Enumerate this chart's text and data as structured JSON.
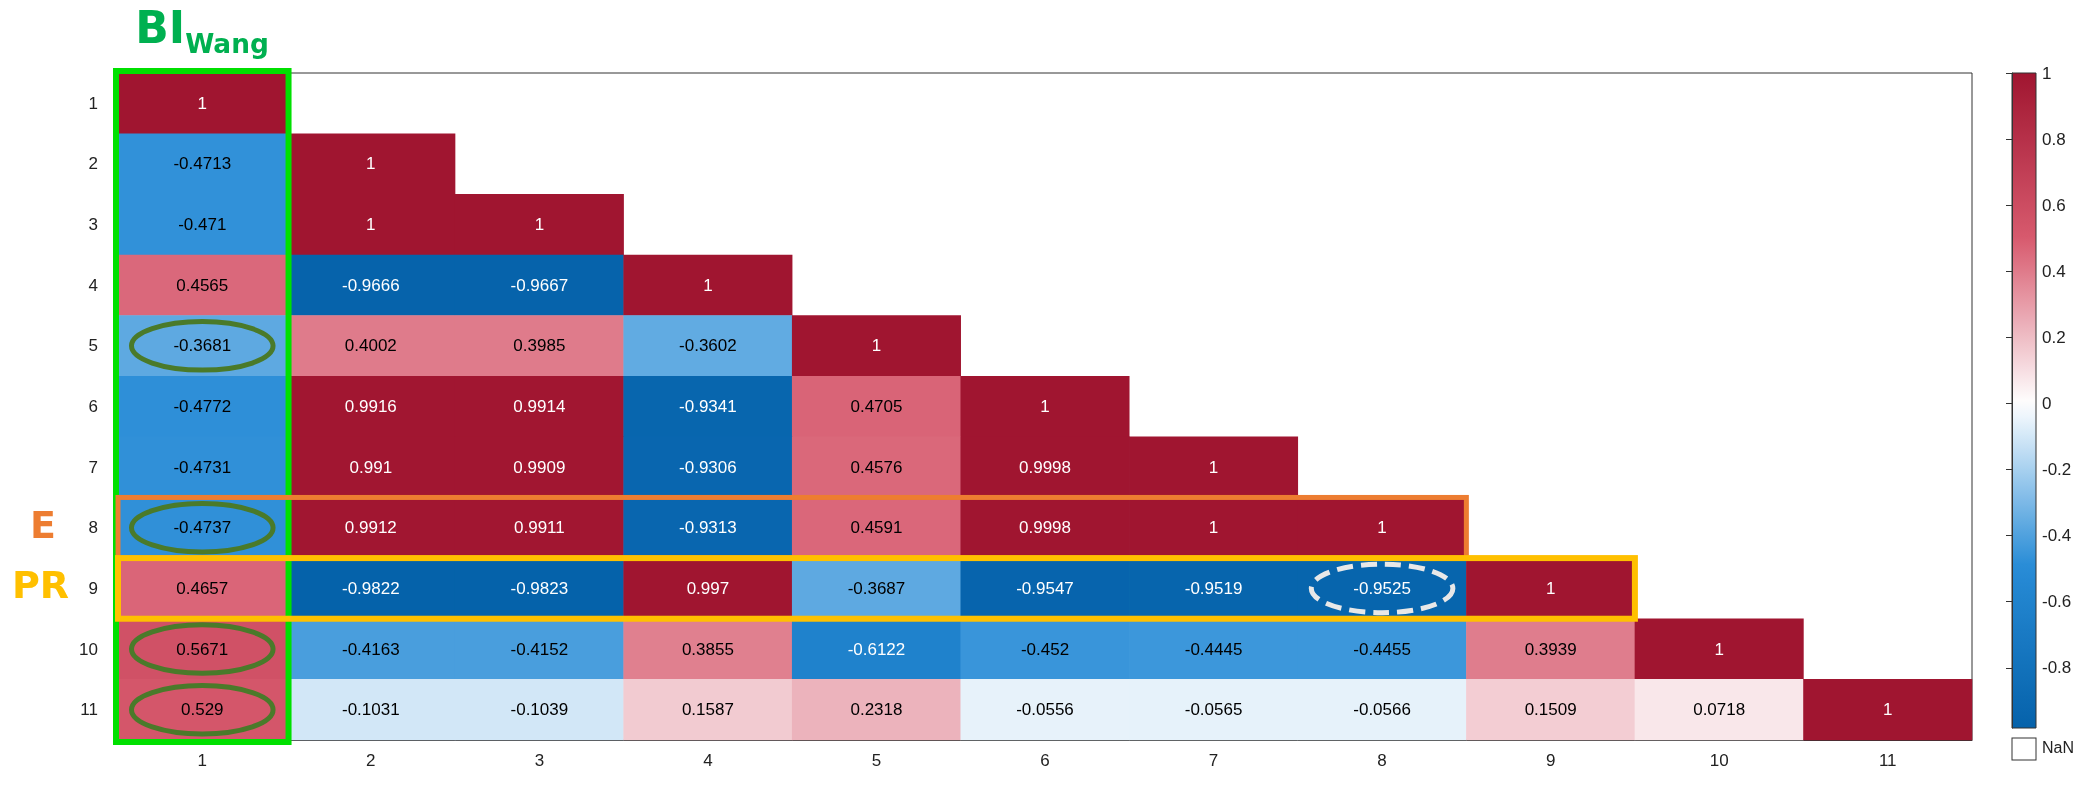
{
  "chart_data": {
    "type": "heatmap",
    "categories": [
      "1",
      "2",
      "3",
      "4",
      "5",
      "6",
      "7",
      "8",
      "9",
      "10",
      "11"
    ],
    "y_categories": [
      "1",
      "2",
      "3",
      "4",
      "5",
      "6",
      "7",
      "8",
      "9",
      "10",
      "11"
    ],
    "cells": [
      [
        1,
        null,
        null,
        null,
        null,
        null,
        null,
        null,
        null,
        null,
        null
      ],
      [
        -0.4713,
        1,
        null,
        null,
        null,
        null,
        null,
        null,
        null,
        null,
        null
      ],
      [
        -0.471,
        1,
        1,
        null,
        null,
        null,
        null,
        null,
        null,
        null,
        null
      ],
      [
        0.4565,
        -0.9666,
        -0.9667,
        1,
        null,
        null,
        null,
        null,
        null,
        null,
        null
      ],
      [
        -0.3681,
        0.4002,
        0.3985,
        -0.3602,
        1,
        null,
        null,
        null,
        null,
        null,
        null
      ],
      [
        -0.4772,
        0.9916,
        0.9914,
        -0.9341,
        0.4705,
        1,
        null,
        null,
        null,
        null,
        null
      ],
      [
        -0.4731,
        0.991,
        0.9909,
        -0.9306,
        0.4576,
        0.9998,
        1,
        null,
        null,
        null,
        null
      ],
      [
        -0.4737,
        0.9912,
        0.9911,
        -0.9313,
        0.4591,
        0.9998,
        1,
        1,
        null,
        null,
        null
      ],
      [
        0.4657,
        -0.9822,
        -0.9823,
        0.997,
        -0.3687,
        -0.9547,
        -0.9519,
        -0.9525,
        1,
        null,
        null
      ],
      [
        0.5671,
        -0.4163,
        -0.4152,
        0.3855,
        -0.6122,
        -0.452,
        -0.4445,
        -0.4455,
        0.3939,
        1,
        null
      ],
      [
        0.529,
        -0.1031,
        -0.1039,
        0.1587,
        0.2318,
        -0.0556,
        -0.0565,
        -0.0566,
        0.1509,
        0.0718,
        1
      ]
    ],
    "clim": [
      -0.9823,
      1
    ],
    "cticks": [
      -0.8,
      -0.6,
      -0.4,
      -0.2,
      0,
      0.2,
      0.4,
      0.6,
      0.8,
      1
    ],
    "data_labels": true,
    "annotations": [
      "BI$_{Wang}$",
      "E",
      "PR",
      "NaN"
    ]
  }
}
